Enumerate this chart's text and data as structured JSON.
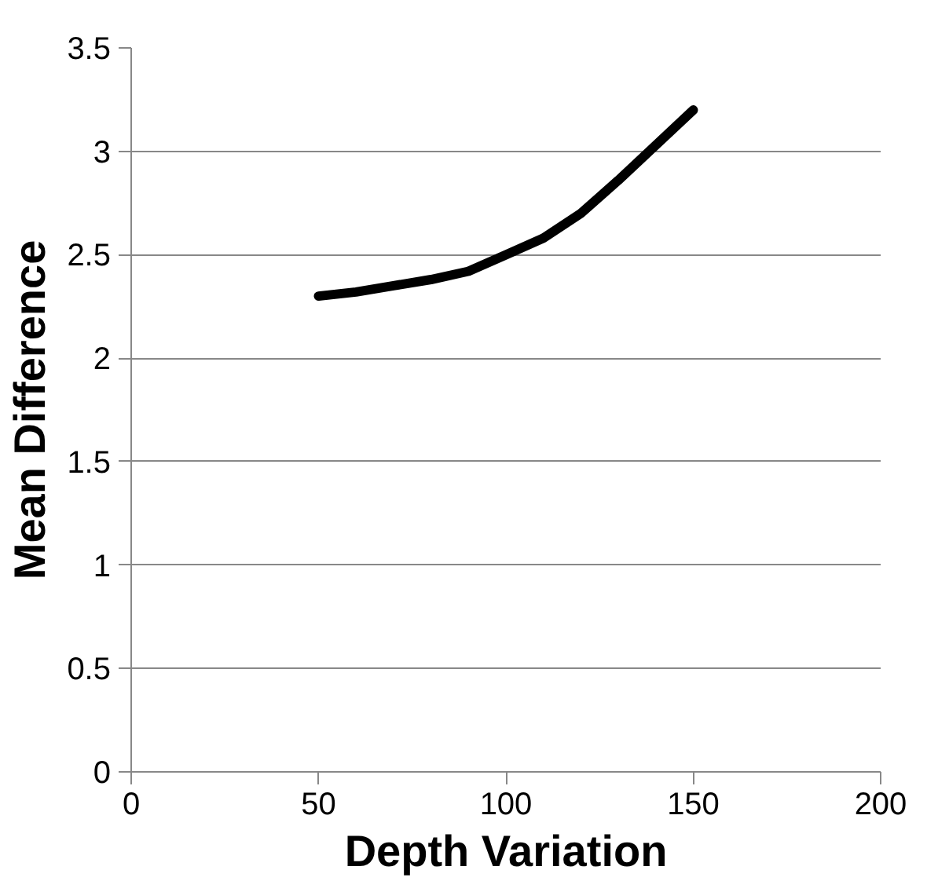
{
  "chart_data": {
    "type": "line",
    "xlabel": "Depth Variation",
    "ylabel": "Mean Difference",
    "x": [
      50,
      60,
      70,
      80,
      90,
      100,
      110,
      120,
      130,
      140,
      150
    ],
    "series": [
      {
        "color": "#000000",
        "values": [
          2.3,
          2.32,
          2.35,
          2.38,
          2.42,
          2.5,
          2.58,
          2.7,
          2.86,
          3.03,
          3.2
        ]
      }
    ],
    "xlim": [
      0,
      200
    ],
    "xticks": [
      0,
      50,
      100,
      150,
      200
    ],
    "ylim": [
      0,
      3.5
    ],
    "yticks": [
      0,
      0.5,
      1,
      1.5,
      2,
      2.5,
      3,
      3.5
    ],
    "grid": "y",
    "marker": "none",
    "line_style": "solid"
  }
}
